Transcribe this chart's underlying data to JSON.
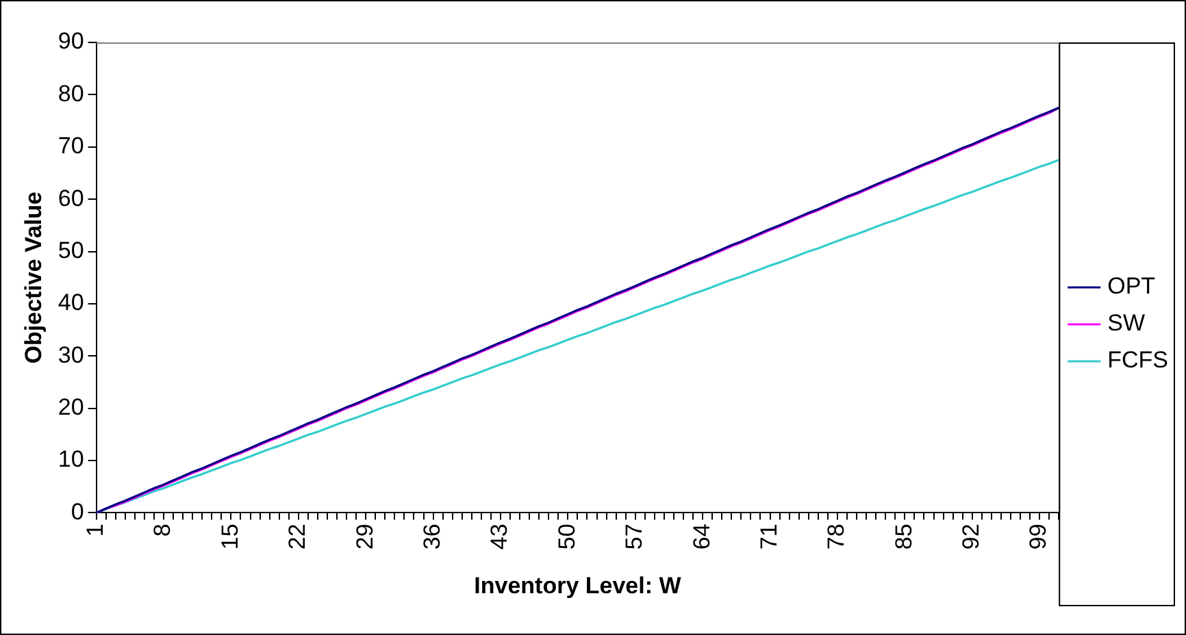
{
  "chart_data": {
    "type": "line",
    "xlabel": "Inventory Level: W",
    "ylabel": "Objective Value",
    "categories": [
      "1",
      null,
      null,
      null,
      null,
      null,
      null,
      "8",
      null,
      null,
      null,
      null,
      null,
      null,
      "15",
      null,
      null,
      null,
      null,
      null,
      null,
      "22",
      null,
      null,
      null,
      null,
      null,
      null,
      "29",
      null,
      null,
      null,
      null,
      null,
      null,
      "36",
      null,
      null,
      null,
      null,
      null,
      null,
      "43",
      null,
      null,
      null,
      null,
      null,
      null,
      "50",
      null,
      null,
      null,
      null,
      null,
      null,
      "57",
      null,
      null,
      null,
      null,
      null,
      null,
      "64",
      null,
      null,
      null,
      null,
      null,
      null,
      "71",
      null,
      null,
      null,
      null,
      null,
      null,
      "78",
      null,
      null,
      null,
      null,
      null,
      null,
      "85",
      null,
      null,
      null,
      null,
      null,
      null,
      "92",
      null,
      null,
      null,
      null,
      null,
      null,
      "99",
      null,
      null
    ],
    "series": [
      {
        "name": "OPT",
        "color": "#000080",
        "values": [
          0,
          0.8,
          1.6,
          2.3,
          3.1,
          3.9,
          4.7,
          5.4,
          6.2,
          7.0,
          7.8,
          8.5,
          9.3,
          10.1,
          10.9,
          11.6,
          12.4,
          13.2,
          14.0,
          14.7,
          15.5,
          16.3,
          17.1,
          17.8,
          18.6,
          19.4,
          20.2,
          20.9,
          21.7,
          22.5,
          23.3,
          24.0,
          24.8,
          25.6,
          26.4,
          27.1,
          27.9,
          28.7,
          29.5,
          30.2,
          31.0,
          31.8,
          32.6,
          33.3,
          34.1,
          34.9,
          35.7,
          36.4,
          37.2,
          38.0,
          38.8,
          39.5,
          40.3,
          41.1,
          41.9,
          42.6,
          43.4,
          44.2,
          45.0,
          45.7,
          46.5,
          47.3,
          48.1,
          48.8,
          49.6,
          50.4,
          51.2,
          51.9,
          52.7,
          53.5,
          54.3,
          55.0,
          55.8,
          56.6,
          57.4,
          58.1,
          58.9,
          59.7,
          60.5,
          61.2,
          62.0,
          62.8,
          63.6,
          64.3,
          65.1,
          65.9,
          66.7,
          67.4,
          68.2,
          69.0,
          69.8,
          70.5,
          71.3,
          72.1,
          72.9,
          73.6,
          74.4,
          75.2,
          76.0,
          76.7,
          77.5
        ]
      },
      {
        "name": "SW",
        "color": "#ff00ff",
        "values": [
          0,
          0.8,
          1.4,
          2.1,
          2.9,
          3.7,
          4.5,
          5.2,
          6.0,
          6.8,
          7.6,
          8.3,
          9.1,
          9.9,
          10.7,
          11.4,
          12.2,
          13.0,
          13.8,
          14.5,
          15.3,
          16.1,
          16.9,
          17.6,
          18.4,
          19.2,
          20.0,
          20.7,
          21.5,
          22.3,
          23.1,
          23.8,
          24.6,
          25.4,
          26.2,
          26.9,
          27.7,
          28.5,
          29.3,
          30.0,
          30.8,
          31.6,
          32.4,
          33.1,
          33.9,
          34.7,
          35.5,
          36.2,
          37.0,
          37.8,
          38.6,
          39.3,
          40.1,
          40.9,
          41.7,
          42.4,
          43.2,
          44.0,
          44.8,
          45.5,
          46.3,
          47.1,
          47.9,
          48.6,
          49.4,
          50.2,
          51.0,
          51.7,
          52.5,
          53.3,
          54.1,
          54.8,
          55.6,
          56.4,
          57.2,
          57.9,
          58.7,
          59.5,
          60.3,
          61.0,
          61.8,
          62.6,
          63.4,
          64.1,
          64.9,
          65.7,
          66.5,
          67.2,
          68.0,
          68.8,
          69.6,
          70.3,
          71.1,
          71.9,
          72.7,
          73.4,
          74.2,
          75.0,
          75.8,
          76.5,
          77.5
        ]
      },
      {
        "name": "FCFS",
        "color": "#33cccc",
        "values": [
          0,
          0.7,
          1.4,
          2.0,
          2.7,
          3.4,
          4.1,
          4.7,
          5.4,
          6.1,
          6.8,
          7.4,
          8.1,
          8.8,
          9.5,
          10.1,
          10.8,
          11.5,
          12.2,
          12.8,
          13.5,
          14.2,
          14.9,
          15.5,
          16.2,
          16.9,
          17.6,
          18.2,
          18.9,
          19.6,
          20.3,
          20.9,
          21.6,
          22.3,
          23.0,
          23.6,
          24.3,
          25.0,
          25.7,
          26.3,
          27.0,
          27.7,
          28.4,
          29.0,
          29.7,
          30.4,
          31.1,
          31.7,
          32.4,
          33.1,
          33.8,
          34.4,
          35.1,
          35.8,
          36.5,
          37.1,
          37.8,
          38.5,
          39.2,
          39.8,
          40.5,
          41.2,
          41.9,
          42.5,
          43.2,
          43.9,
          44.6,
          45.2,
          45.9,
          46.6,
          47.3,
          47.9,
          48.6,
          49.3,
          50.0,
          50.6,
          51.3,
          52.0,
          52.7,
          53.3,
          54.0,
          54.7,
          55.4,
          56.0,
          56.7,
          57.4,
          58.1,
          58.7,
          59.4,
          60.1,
          60.8,
          61.4,
          62.1,
          62.8,
          63.5,
          64.1,
          64.8,
          65.5,
          66.2,
          66.8,
          67.5
        ]
      }
    ],
    "ylim": [
      0,
      90
    ],
    "yticks": [
      0,
      10,
      20,
      30,
      40,
      50,
      60,
      70,
      80,
      90
    ],
    "grid": false,
    "legend": "right",
    "marker": "none",
    "line_style": "solid"
  }
}
